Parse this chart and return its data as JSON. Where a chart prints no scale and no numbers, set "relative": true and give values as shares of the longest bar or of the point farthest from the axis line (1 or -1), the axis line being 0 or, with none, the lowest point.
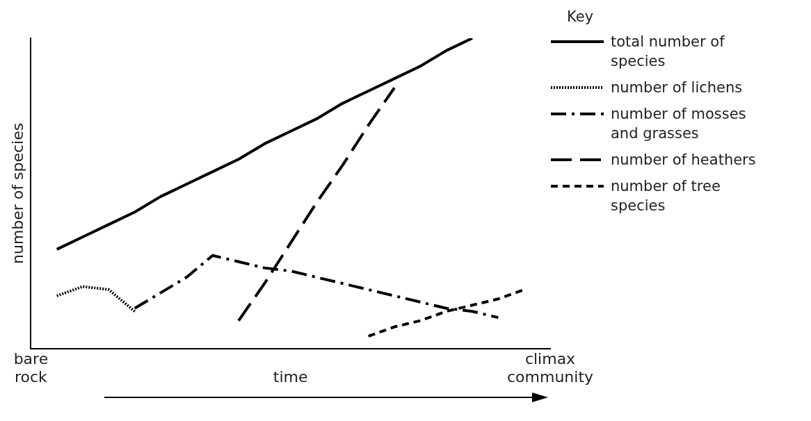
{
  "chart_data": {
    "type": "line",
    "relative": true,
    "xlabel": "time",
    "ylabel": "number of species",
    "legend_title": "Key",
    "legend": "right",
    "grid": false,
    "marker": "none",
    "categories": [
      "bare rock",
      null,
      null,
      null,
      null,
      null,
      null,
      null,
      null,
      null,
      null,
      null,
      null,
      null,
      null,
      null,
      null,
      null,
      null,
      null,
      "climax community"
    ],
    "series": [
      {
        "name": "total number of species",
        "color": "#000000",
        "line_style": "solid",
        "values": [
          null,
          0.32,
          0.36,
          0.4,
          0.44,
          0.49,
          0.53,
          0.57,
          0.61,
          0.66,
          0.7,
          0.74,
          0.79,
          0.83,
          0.87,
          0.91,
          0.96,
          1,
          null,
          null,
          null
        ]
      },
      {
        "name": "number of lichens",
        "color": "#000000",
        "line_style": "dotted",
        "values": [
          null,
          0.17,
          0.2,
          0.19,
          0.12,
          null,
          null,
          null,
          null,
          null,
          null,
          null,
          null,
          null,
          null,
          null,
          null,
          null,
          null,
          null,
          null
        ]
      },
      {
        "name": "number of mosses and grasses",
        "color": "#000000",
        "line_style": "dashdot",
        "values": [
          null,
          null,
          null,
          null,
          0.13,
          0.18,
          0.23,
          0.3,
          0.28,
          0.26,
          0.25,
          0.23,
          0.21,
          0.19,
          0.17,
          0.15,
          0.13,
          0.12,
          0.1,
          null,
          null
        ]
      },
      {
        "name": "number of heathers",
        "color": "#000000",
        "line_style": "longdash",
        "values": [
          null,
          null,
          null,
          null,
          null,
          null,
          null,
          null,
          0.09,
          0.21,
          0.34,
          0.47,
          0.59,
          0.72,
          0.84,
          null,
          null,
          null,
          null,
          null,
          null
        ]
      },
      {
        "name": "number of tree species",
        "color": "#000000",
        "line_style": "dashed",
        "values": [
          null,
          null,
          null,
          null,
          null,
          null,
          null,
          null,
          null,
          null,
          null,
          null,
          null,
          0.04,
          0.07,
          0.09,
          0.12,
          0.14,
          0.16,
          0.19,
          null
        ]
      }
    ]
  }
}
